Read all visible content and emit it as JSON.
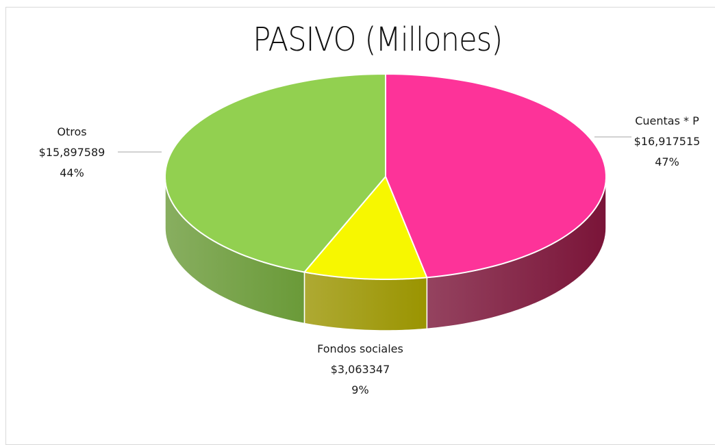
{
  "chart_data": {
    "type": "pie",
    "title": "PASIVO (Millones)",
    "slices": [
      {
        "name": "Cuentas * P",
        "value_label": "$16,917515",
        "percent_label": "47%",
        "percent": 47,
        "color": "#fd3399",
        "side_color": "#7a1438"
      },
      {
        "name": "Fondos sociales",
        "value_label": "$3,063347",
        "percent_label": "9%",
        "percent": 9,
        "color": "#f7f700",
        "side_color": "#9a9400"
      },
      {
        "name": "Otros",
        "value_label": "$15,897589",
        "percent_label": "44%",
        "percent": 44,
        "color": "#92d050",
        "side_color": "#6a9a38"
      }
    ],
    "legend": "none",
    "style": "3d-pie"
  },
  "colors": {
    "frame_border": "#d9d9d9",
    "leader_line": "#a6a6a6",
    "slice_border": "#ffffff"
  }
}
